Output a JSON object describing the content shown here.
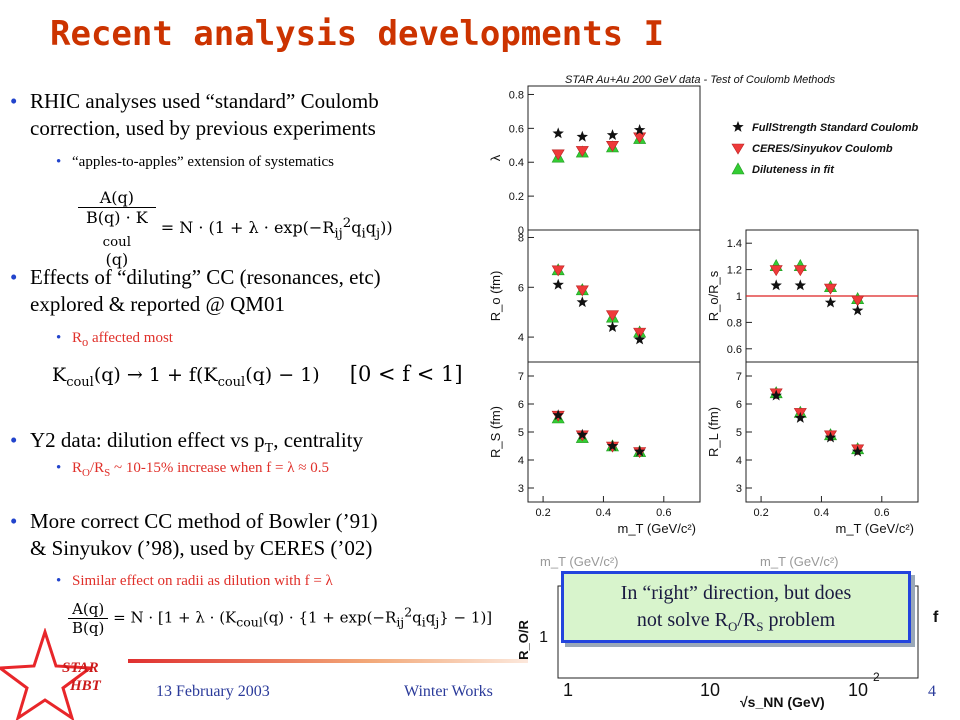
{
  "slide": {
    "title": "Recent analysis developments I",
    "bullets": [
      {
        "line1": "RHIC analyses used “standard” Coulomb",
        "line2": "correction, used by previous experiments",
        "sub": "“apples-to-apples”  extension of systematics"
      },
      {
        "line1": "Effects of “diluting” CC (resonances, etc)",
        "line2": "explored & reported @ QM01",
        "sub_main": "R",
        "sub_subscript": "o",
        "sub_rest": " affected most"
      },
      {
        "line1_a": "Y2 data: dilution effect vs p",
        "line1_sub": "T",
        "line1_b": ", centrality",
        "sub_a": "R",
        "sub_s1": "O",
        "sub_b": "/R",
        "sub_s2": "S",
        "sub_c": " ~ 10-15% increase when f = λ ≈ 0.5"
      },
      {
        "line1": "More correct CC method of Bowler (’91)",
        "line2": "& Sinyukov (’98), used by CERES (’02)",
        "sub": "Similar effect on radii as dilution with f = λ"
      }
    ],
    "equations": {
      "eq1_num": "A(q)",
      "eq1_den": "B(q) · K",
      "eq1_den_sub": "coul",
      "eq1_den_end": "(q)",
      "eq1_rhs": "= N · (1 + λ · exp(−R",
      "eq1_rhs_sub": "ij",
      "eq1_rhs_sup": "2",
      "eq1_rhs_end": "q",
      "eq1_rhs_q": "i",
      "eq1_rhs_q2": "q",
      "eq1_rhs_q2sub": "j",
      "eq1_close": "))",
      "eq2_left": "K",
      "eq2_left_sub": "coul",
      "eq2_mid": "(q) → 1 + f(K",
      "eq2_mid_sub": "coul",
      "eq2_end": "(q) − 1)",
      "eq2_range": "[0 < f < 1]",
      "eq3_num": "A(q)",
      "eq3_den": "B(q)",
      "eq3_rhs_a": "= N · [1 + λ · (K",
      "eq3_rhs_sub": "coul",
      "eq3_rhs_b": "(q) · {1 + exp(−R",
      "eq3_rhs_sub2": "ij",
      "eq3_rhs_sup": "2",
      "eq3_rhs_c": "q",
      "eq3_q_i": "i",
      "eq3_q_j_pre": "q",
      "eq3_q_j": "j",
      "eq3_rhs_end": "} − 1)]"
    },
    "callout": {
      "line1": "In “right” direction, but does",
      "line2_a": "not solve R",
      "line2_s1": "O",
      "line2_b": "/R",
      "line2_s2": "S",
      "line2_c": " problem"
    },
    "footer": {
      "date": "13 February 2003",
      "event": "Winter Works",
      "page": "4",
      "logo_text_1": "STAR",
      "logo_text_2": "HBT"
    }
  },
  "chart_data": {
    "type": "scatter",
    "title": "STAR Au+Au 200 GeV data - Test of Coulomb Methods",
    "legend": [
      {
        "name": "FullStrength Standard Coulomb",
        "marker": "star",
        "color": "#111111"
      },
      {
        "name": "CERES/Sinyukov Coulomb",
        "marker": "triangle-down",
        "color": "#ee3a3a"
      },
      {
        "name": "Diluteness in fit",
        "marker": "triangle-up",
        "color": "#33cc33"
      }
    ],
    "x_values": [
      0.25,
      0.33,
      0.43,
      0.52
    ],
    "xlabel": "m_T (GeV/c²)",
    "x_ticks": [
      "0.2",
      "0.4",
      "0.6"
    ],
    "xlim": [
      0.15,
      0.72
    ],
    "panels": [
      {
        "id": "lambda",
        "ylabel": "λ",
        "ylim": [
          0,
          0.85
        ],
        "y_ticks": [
          "0",
          "0.2",
          "0.4",
          "0.6",
          "0.8"
        ],
        "series": [
          [
            0.57,
            0.55,
            0.56,
            0.59
          ],
          [
            0.45,
            0.47,
            0.5,
            0.55
          ],
          [
            0.43,
            0.46,
            0.49,
            0.54
          ]
        ]
      },
      {
        "id": "Ro",
        "ylabel": "R_o (fm)",
        "ylim": [
          3,
          8.3
        ],
        "y_ticks": [
          "4",
          "6",
          "8"
        ],
        "series": [
          [
            6.1,
            5.4,
            4.4,
            3.9
          ],
          [
            6.7,
            5.9,
            4.9,
            4.2
          ],
          [
            6.7,
            5.9,
            4.8,
            4.2
          ]
        ]
      },
      {
        "id": "Rs",
        "ylabel": "R_S (fm)",
        "ylim": [
          2.5,
          7.5
        ],
        "y_ticks": [
          "3",
          "4",
          "5",
          "6",
          "7"
        ],
        "series": [
          [
            5.6,
            4.9,
            4.5,
            4.3
          ],
          [
            5.6,
            4.9,
            4.5,
            4.3
          ],
          [
            5.5,
            4.8,
            4.5,
            4.3
          ]
        ]
      },
      {
        "id": "RoRs",
        "ylabel": "R_o/R_s",
        "ylim": [
          0.5,
          1.5
        ],
        "y_ticks": [
          "0.6",
          "0.8",
          "1",
          "1.2",
          "1.4"
        ],
        "reference_line": 1.0,
        "series": [
          [
            1.08,
            1.08,
            0.95,
            0.89
          ],
          [
            1.2,
            1.2,
            1.06,
            0.97
          ],
          [
            1.23,
            1.23,
            1.07,
            0.98
          ]
        ]
      },
      {
        "id": "RL",
        "ylabel": "R_L (fm)",
        "ylim": [
          2.5,
          7.5
        ],
        "y_ticks": [
          "3",
          "4",
          "5",
          "6",
          "7"
        ],
        "series": [
          [
            6.3,
            5.5,
            4.8,
            4.3
          ],
          [
            6.4,
            5.7,
            4.9,
            4.4
          ],
          [
            6.4,
            5.7,
            4.9,
            4.4
          ]
        ]
      }
    ],
    "bottom_chart": {
      "ylabel": "R_O/R",
      "x_ticks": [
        "1",
        "10",
        "10"
      ],
      "x_tick_exponent": "2",
      "xlabel": "√s_NN (GeV)",
      "y_tick": "1",
      "partial_label": "f",
      "hidden_axis_a": "m_T (GeV/c²)",
      "hidden_axis_b": "m_T (GeV/c²)"
    }
  }
}
